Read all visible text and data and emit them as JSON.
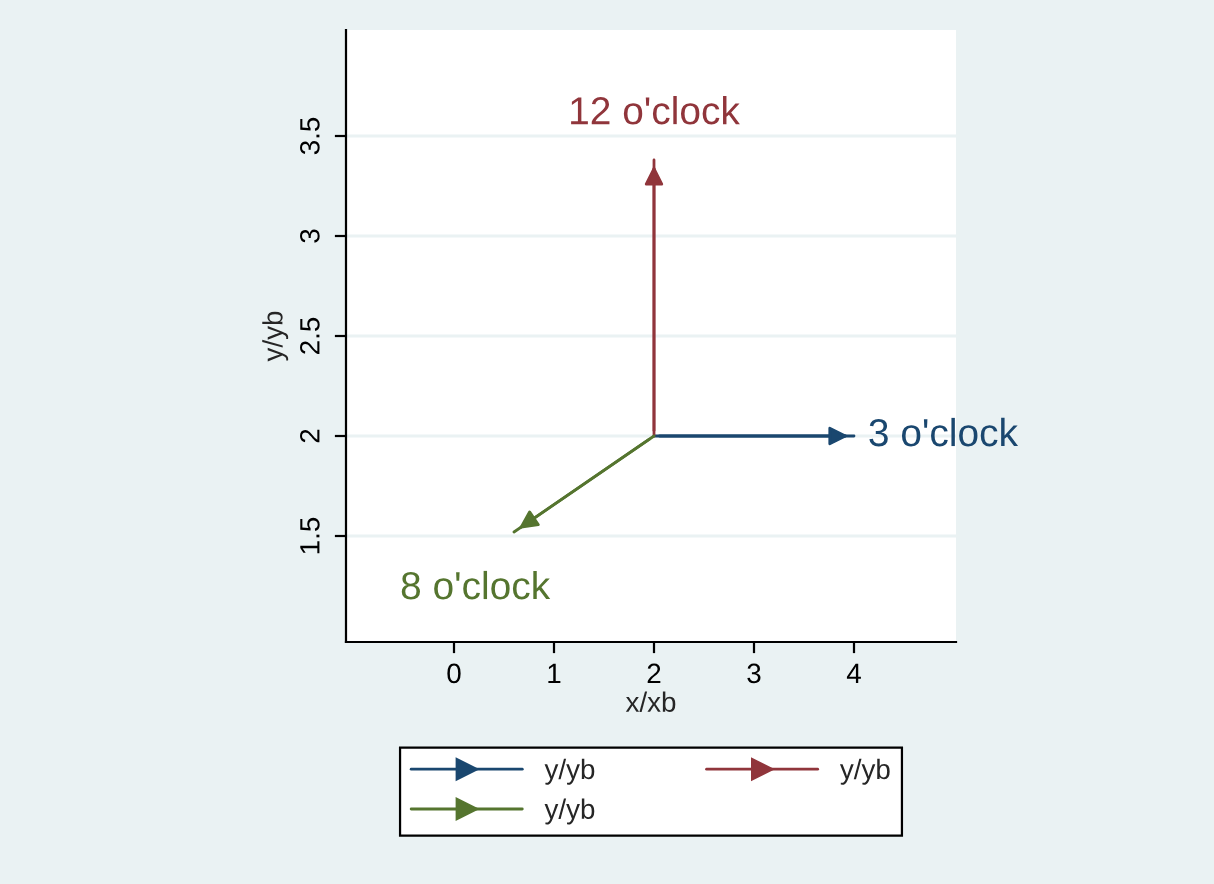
{
  "chart_data": {
    "type": "line",
    "xlabel": "x/xb",
    "ylabel": "y/yb",
    "xlim": [
      -1.08,
      5.02
    ],
    "ylim": [
      0.97,
      4.03
    ],
    "xticks": [
      0,
      1,
      2,
      3,
      4
    ],
    "yticks": [
      1.5,
      2,
      2.5,
      3,
      3.5
    ],
    "grid": "y",
    "legend": "bottom",
    "series": [
      {
        "name": "y/yb",
        "color": "#1a476f",
        "x": [
          2,
          4
        ],
        "values": [
          2,
          2
        ]
      },
      {
        "name": "y/yb",
        "color": "#90353b",
        "x": [
          2,
          2
        ],
        "values": [
          2,
          3.38
        ]
      },
      {
        "name": "y/yb",
        "color": "#55752f",
        "x": [
          2,
          0.6
        ],
        "values": [
          2,
          1.52
        ]
      }
    ],
    "annotations": [
      {
        "text": "3 o'clock",
        "x": 4,
        "y": 2
      },
      {
        "text": "12 o'clock",
        "x": 2,
        "y": 3.38
      },
      {
        "text": "8 o'clock",
        "x": 0.6,
        "y": 1.52
      }
    ]
  }
}
